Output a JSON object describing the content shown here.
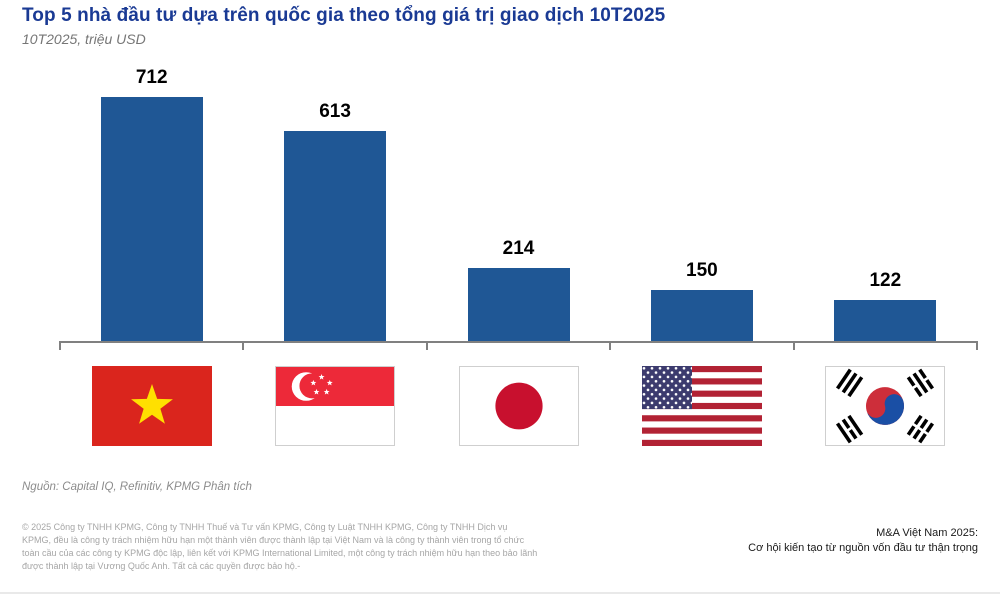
{
  "header": {
    "title": "Top 5 nhà đầu tư dựa trên quốc gia theo tổng giá trị giao dịch 10T2025",
    "subtitle": "10T2025, triệu USD"
  },
  "chart_data": {
    "type": "bar",
    "title": "Top 5 nhà đầu tư dựa trên quốc gia theo tổng giá trị giao dịch 10T2025",
    "subtitle": "10T2025, triệu USD",
    "unit": "triệu USD",
    "categories": [
      "Việt Nam",
      "Singapore",
      "Nhật Bản",
      "Hoa Kỳ",
      "Hàn Quốc"
    ],
    "category_ids": [
      "vietnam",
      "singapore",
      "japan",
      "usa",
      "south-korea"
    ],
    "category_label_style": "flag-icons",
    "values": [
      712,
      613,
      214,
      150,
      122
    ],
    "data_labels": [
      "712",
      "613",
      "214",
      "150",
      "122"
    ],
    "ylim": [
      0,
      760
    ],
    "grid": false,
    "legend": false,
    "bar_color": "#1F5795"
  },
  "source_note": "Nguồn: Capital IQ, Refinitiv, KPMG Phân tích",
  "footer": {
    "copyright_lines": [
      "© 2025 Công ty TNHH KPMG, Công ty TNHH Thuế và Tư vấn KPMG, Công ty Luật TNHH KPMG, Công ty TNHH Dịch vụ",
      "KPMG, đều là công ty trách nhiệm hữu hạn một thành viên được thành lập tại Việt Nam và là công ty thành viên trong tổ chức",
      "toàn cầu của các công ty KPMG độc lập, liên kết với KPMG International Limited, một công ty trách nhiệm hữu hạn theo bảo lãnh",
      "được thành lập tại Vương Quốc Anh. Tất cả các quyền được bảo hộ.-"
    ],
    "report_title_line1": "M&A Việt Nam 2025:",
    "report_title_line2": "Cơ hội kiến tạo từ nguồn vốn đầu tư thận trọng"
  },
  "colors": {
    "title_text": "#1A3A94",
    "bar": "#1F5795",
    "axis": "#808080",
    "muted_text": "#8C8C8C",
    "footer_text": "#A6A6A6",
    "flag_vietnam_red": "#DA251D",
    "flag_vietnam_star": "#FFE000",
    "flag_singapore_red": "#ED2939",
    "flag_japan_disc": "#C8102E",
    "flag_usa_red": "#B22234",
    "flag_usa_blue": "#3C3B6E",
    "flag_korea_red": "#CD2E3A",
    "flag_korea_blue": "#1A4FA5"
  }
}
